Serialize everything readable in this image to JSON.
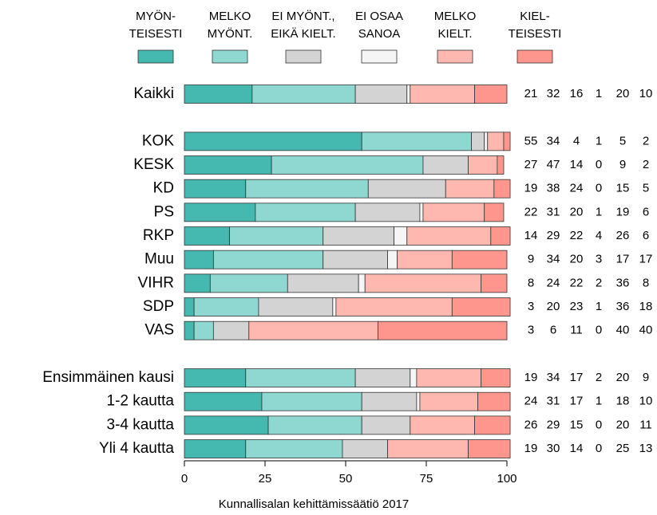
{
  "chart_data": {
    "type": "stacked_barh",
    "categories": [
      "Kaikki",
      null,
      "KOK",
      "KESK",
      "KD",
      "PS",
      "RKP",
      "Muu",
      "VIHR",
      "SDP",
      "VAS",
      null,
      "Ensimmäinen kausi",
      "1-2 kautta",
      "3-4 kautta",
      "Yli 4 kautta"
    ],
    "series": [
      {
        "name": "MYÖN-\nTEISESTI",
        "color": "#45b8b0",
        "values": [
          21,
          null,
          55,
          27,
          19,
          22,
          14,
          9,
          8,
          3,
          3,
          null,
          19,
          24,
          26,
          19
        ]
      },
      {
        "name": "MELKO\nMYÖNT.",
        "color": "#8fd8d2",
        "values": [
          32,
          null,
          34,
          47,
          38,
          31,
          29,
          34,
          24,
          20,
          6,
          null,
          34,
          31,
          29,
          30
        ]
      },
      {
        "name": "EI MYÖNT.,\nEIKÄ KIELT.",
        "color": "#d3d3d3",
        "values": [
          16,
          null,
          4,
          14,
          24,
          20,
          22,
          20,
          22,
          23,
          11,
          null,
          17,
          17,
          15,
          14
        ]
      },
      {
        "name": "EI OSAA\nSANOA",
        "color": "#f5f5f5",
        "values": [
          1,
          null,
          1,
          0,
          0,
          1,
          4,
          3,
          2,
          1,
          0,
          null,
          2,
          1,
          0,
          0
        ]
      },
      {
        "name": "MELKO\nKIELT.",
        "color": "#ffb8b0",
        "values": [
          20,
          null,
          5,
          9,
          15,
          19,
          26,
          17,
          36,
          36,
          40,
          null,
          20,
          18,
          20,
          25
        ]
      },
      {
        "name": "KIEL-\nTEISESTI",
        "color": "#ff968e",
        "values": [
          10,
          null,
          2,
          2,
          5,
          6,
          6,
          17,
          8,
          18,
          40,
          null,
          9,
          10,
          11,
          13
        ]
      }
    ],
    "xlim": [
      0,
      100
    ],
    "xticks": [
      0,
      25,
      50,
      75,
      100
    ],
    "source": "Kunnallisalan kehittämissäätiö 2017"
  }
}
